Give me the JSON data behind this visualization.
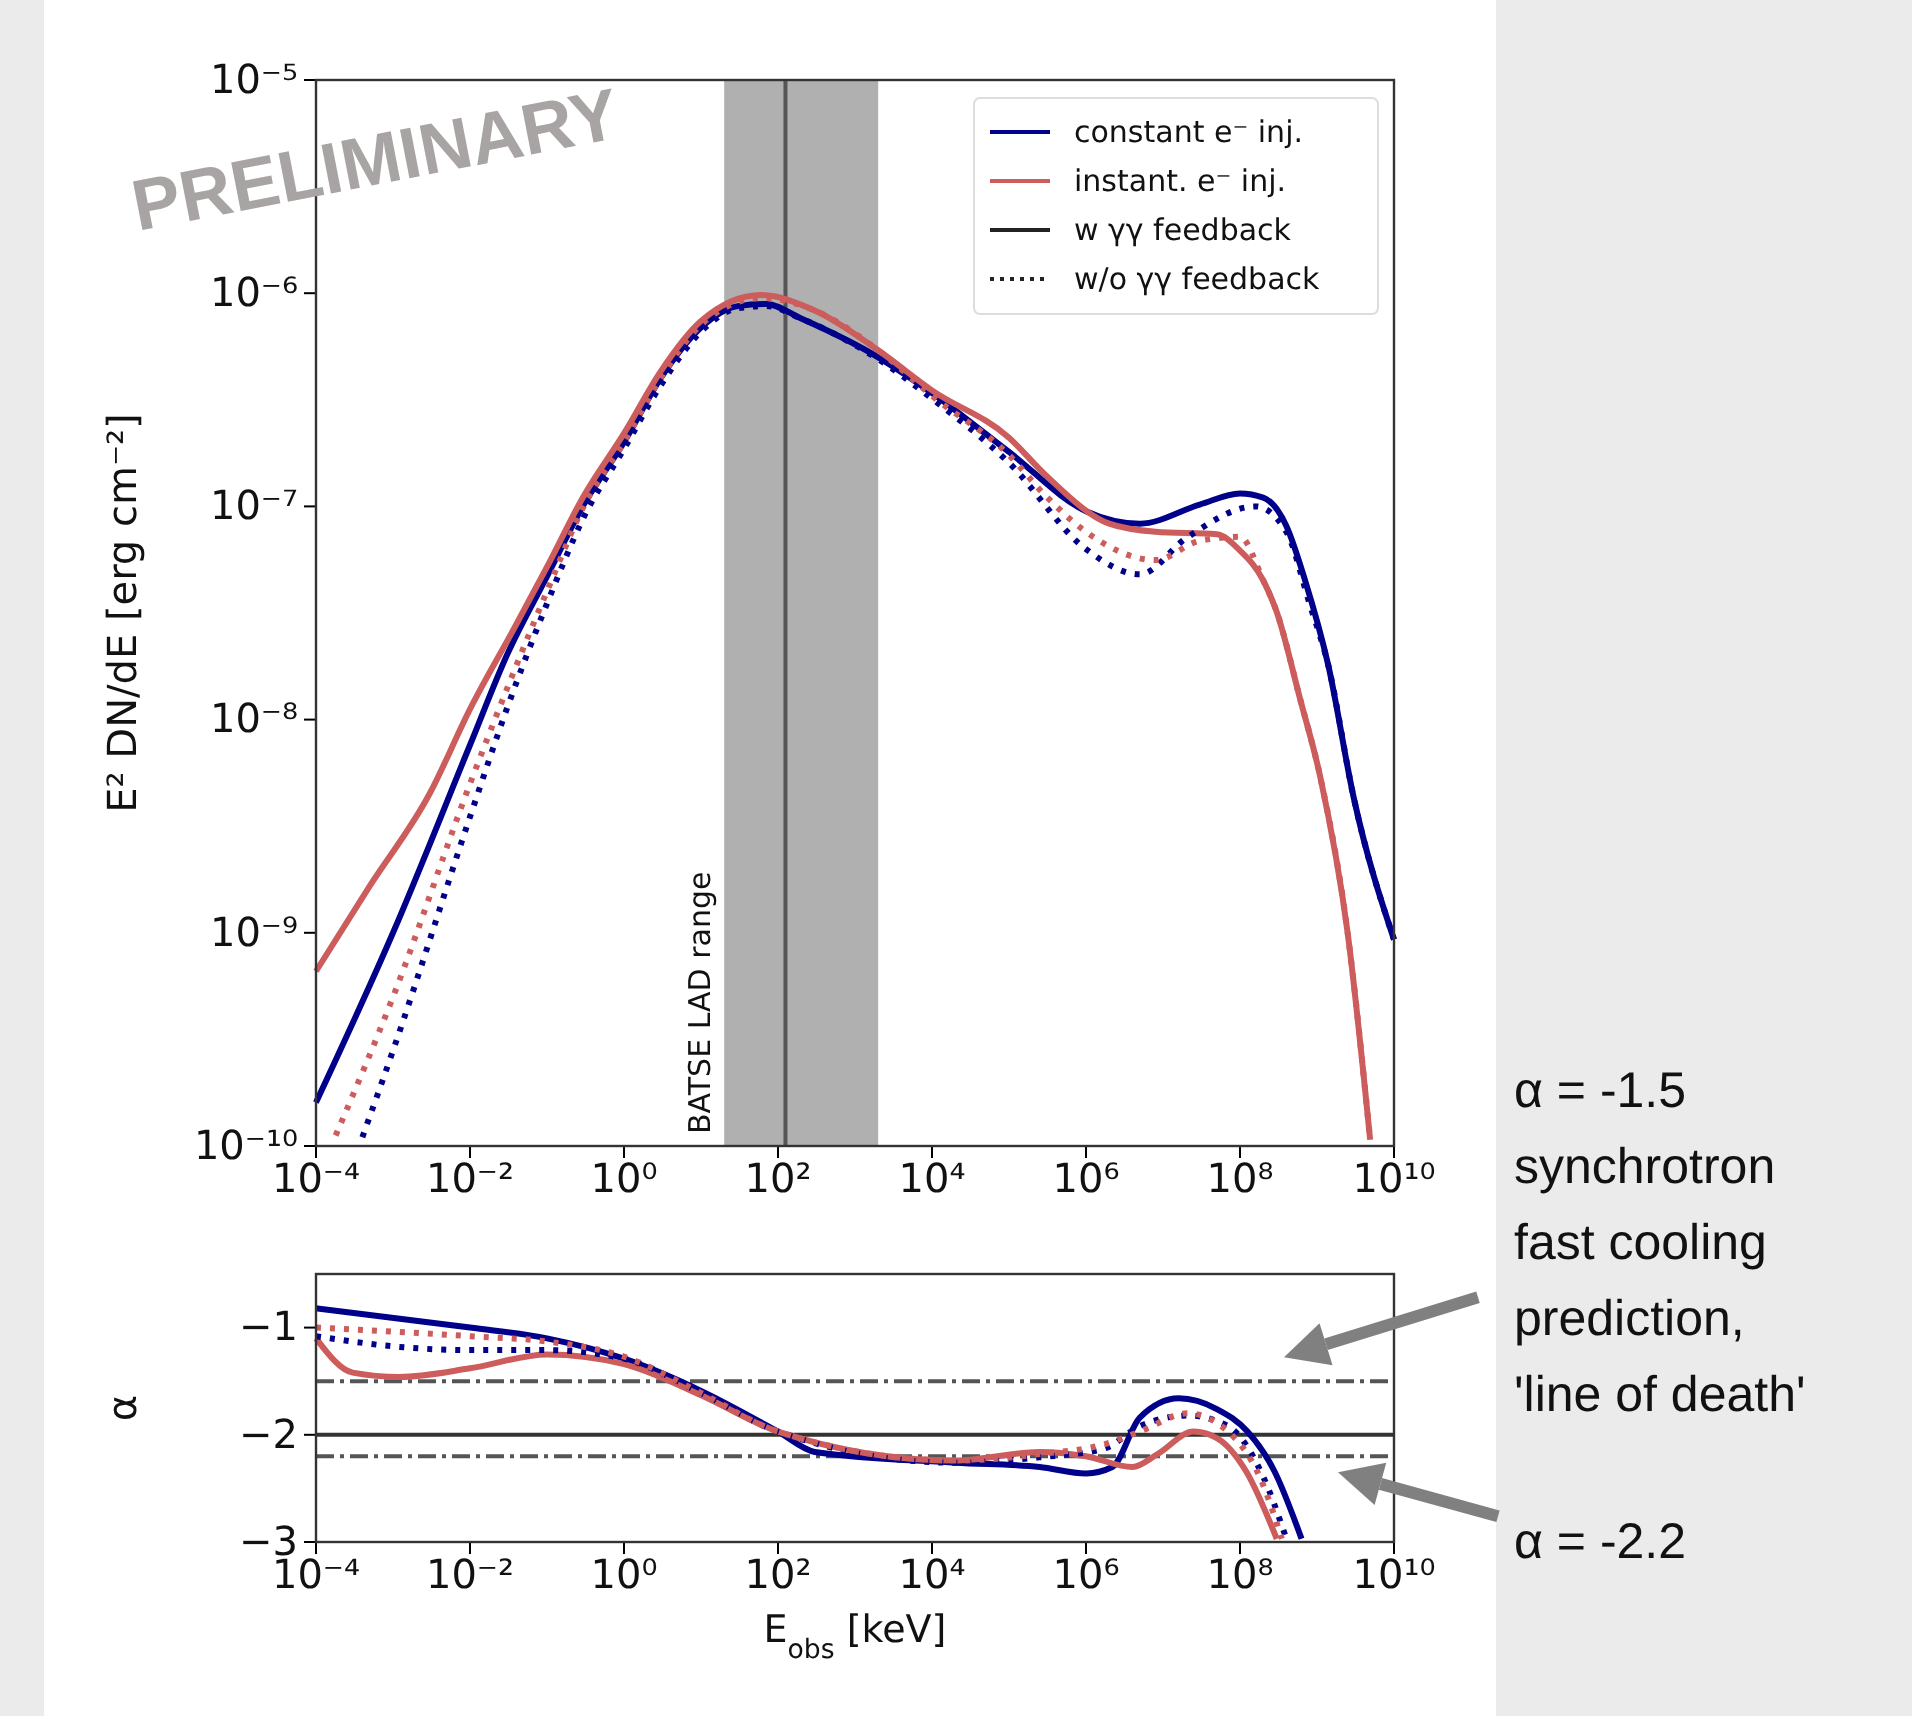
{
  "chart_data": [
    {
      "type": "line",
      "ylabel": "E² DN/dE [erg cm⁻²]",
      "log": "xy",
      "xlim": [
        0.0001,
        10000000000.0
      ],
      "ylim": [
        1e-10,
        1e-05
      ],
      "xticks": [
        {
          "value": 0.0001,
          "label": "10⁻⁴"
        },
        {
          "value": 0.01,
          "label": "10⁻²"
        },
        {
          "value": 1,
          "label": "10⁰"
        },
        {
          "value": 100,
          "label": "10²"
        },
        {
          "value": 10000.0,
          "label": "10⁴"
        },
        {
          "value": 1000000.0,
          "label": "10⁶"
        },
        {
          "value": 100000000.0,
          "label": "10⁸"
        },
        {
          "value": 10000000000.0,
          "label": "10¹⁰"
        }
      ],
      "yticks": [
        {
          "value": 1e-10,
          "label": "10⁻¹⁰"
        },
        {
          "value": 1e-09,
          "label": "10⁻⁹"
        },
        {
          "value": 1e-08,
          "label": "10⁻⁸"
        },
        {
          "value": 1e-07,
          "label": "10⁻⁷"
        },
        {
          "value": 1e-06,
          "label": "10⁻⁶"
        },
        {
          "value": 1e-05,
          "label": "10⁻⁵"
        }
      ],
      "legend": "top right",
      "bands": [
        {
          "axis": "x",
          "from": 20,
          "to": 2000,
          "label": "BATSE LAD range",
          "color": "#b0b0b0"
        }
      ],
      "ref_lines": [
        {
          "axis": "x",
          "value": 125,
          "color": "#555555"
        }
      ],
      "annotations": [
        "PRELIMINARY",
        "w γγ feedback",
        "w/o γγ feedback"
      ],
      "series": [
        {
          "name": "constant e⁻ inj.",
          "color": "#00008b",
          "line_style": "solid",
          "x": [
            0.0001,
            0.001,
            0.01,
            0.03,
            0.1,
            0.3,
            1,
            3,
            10,
            30,
            70,
            200,
            2000,
            10000.0,
            100000.0,
            1000000.0,
            5000000.0,
            30000000.0,
            100000000.0,
            200000000.0,
            400000000.0,
            700000000.0,
            1400000000.0,
            3000000000.0,
            10000000000.0
          ],
          "values": [
            1.6e-10,
            1e-09,
            7.6e-09,
            2e-08,
            4.7e-08,
            1.02e-07,
            2e-07,
            4e-07,
            6.9e-07,
            8.7e-07,
            8.9e-07,
            7.6e-07,
            5e-07,
            3.4e-07,
            1.8e-07,
            9.5e-08,
            8.3e-08,
            1.02e-07,
            1.15e-07,
            1.1e-07,
            8.1e-08,
            4.5e-08,
            1.8e-08,
            4.3e-09,
            9.3e-10
          ]
        },
        {
          "name": "instant. e⁻ inj.",
          "color": "#cd5c5c",
          "line_style": "solid",
          "x": [
            0.0001,
            0.0005,
            0.003,
            0.01,
            0.04,
            0.1,
            0.3,
            1,
            3,
            10,
            60,
            300,
            2000,
            10000.0,
            100000.0,
            300000.0,
            2000000.0,
            8000000.0,
            50000000.0,
            100000000.0,
            200000000.0,
            300000000.0,
            600000000.0,
            1100000000.0,
            2500000000.0,
            4900000000.0
          ],
          "values": [
            6.6e-10,
            1.66e-09,
            4.5e-09,
            1.12e-08,
            2.8e-08,
            5.2e-08,
            1.12e-07,
            2.2e-07,
            4.3e-07,
            7.4e-07,
            9.8e-07,
            8.3e-07,
            5.4e-07,
            3.5e-07,
            2.1e-07,
            1.4e-07,
            8.3e-08,
            7.6e-08,
            7.4e-08,
            6.2e-08,
            4.5e-08,
            3.2e-08,
            1.26e-08,
            5.4e-09,
            1e-09,
            1.07e-10
          ]
        },
        {
          "color": "#00008b",
          "line_style": "dotted",
          "x": [
            0.0004,
            0.001,
            0.01,
            0.03,
            0.1,
            0.3,
            1,
            3,
            10,
            30,
            70,
            200,
            2000,
            10000.0,
            100000.0,
            1000000.0,
            5000000.0,
            20000000.0,
            160000000.0,
            400000000.0,
            800000000.0,
            1400000000.0,
            3000000000.0,
            10000000000.0
          ],
          "values": [
            1.1e-10,
            2.8e-10,
            3.5e-09,
            1.12e-08,
            3.5e-08,
            8.9e-08,
            1.86e-07,
            3.7e-07,
            6.6e-07,
            8.5e-07,
            8.7e-07,
            7.6e-07,
            4.9e-07,
            3.2e-07,
            1.6e-07,
            6.3e-08,
            4.8e-08,
            7.1e-08,
            1e-07,
            7.6e-08,
            3.5e-08,
            1.8e-08,
            4.3e-09,
            9.3e-10
          ]
        },
        {
          "color": "#cd5c5c",
          "line_style": "dotted",
          "x": [
            0.00018,
            0.001,
            0.01,
            0.1,
            0.3,
            1,
            3,
            10,
            60,
            300,
            2000,
            10000.0,
            100000.0,
            300000.0,
            1000000.0,
            8000000.0,
            30000000.0,
            100000000.0,
            200000000.0,
            300000000.0,
            600000000.0,
            1100000000.0,
            2500000000.0,
            4900000000.0
          ],
          "values": [
            1.12e-10,
            5e-10,
            5e-09,
            4e-08,
            1e-07,
            2e-07,
            4e-07,
            7.1e-07,
            9.5e-07,
            8.3e-07,
            5.4e-07,
            3.3e-07,
            1.74e-07,
            1.12e-07,
            7.6e-08,
            5.6e-08,
            6.9e-08,
            7.2e-08,
            4.5e-08,
            3.2e-08,
            1.26e-08,
            5.4e-09,
            1e-09,
            1.07e-10
          ]
        }
      ]
    },
    {
      "type": "line",
      "xlabel": "E$_{obs}$ [keV]",
      "ylabel": "α",
      "log": "x",
      "xlim": [
        0.0001,
        10000000000.0
      ],
      "ylim": [
        -3,
        -0.5
      ],
      "xticks": [
        {
          "value": 0.0001,
          "label": "10⁻⁴"
        },
        {
          "value": 0.01,
          "label": "10⁻²"
        },
        {
          "value": 1,
          "label": "10⁰"
        },
        {
          "value": 100,
          "label": "10²"
        },
        {
          "value": 10000.0,
          "label": "10⁴"
        },
        {
          "value": 1000000.0,
          "label": "10⁶"
        },
        {
          "value": 100000000.0,
          "label": "10⁸"
        },
        {
          "value": 10000000000.0,
          "label": "10¹⁰"
        }
      ],
      "yticks": [
        {
          "value": -3,
          "label": "−3"
        },
        {
          "value": -2,
          "label": "−2"
        },
        {
          "value": -1,
          "label": "−1"
        }
      ],
      "ref_lines": [
        {
          "axis": "y",
          "value": -1.5,
          "line_style": "dashed",
          "color": "#555555",
          "label": "α = -1.5 synchrotron fast cooling prediction, 'line of death'"
        },
        {
          "axis": "y",
          "value": -2,
          "line_style": "solid",
          "color": "#333333"
        },
        {
          "axis": "y",
          "value": -2.2,
          "line_style": "dashed",
          "color": "#555555",
          "label": "α = -2.2"
        }
      ],
      "series": [
        {
          "color": "#00008b",
          "line_style": "solid",
          "x": [
            0.0001,
            0.01,
            0.1,
            1,
            10,
            100,
            300,
            20000.0,
            250000.0,
            1000000.0,
            2200000.0,
            5000000.0,
            16000000.0,
            50000000.0,
            125000000.0,
            280000000.0,
            630000000.0
          ],
          "values": [
            -0.82,
            -1.0,
            -1.1,
            -1.29,
            -1.59,
            -1.97,
            -2.16,
            -2.26,
            -2.3,
            -2.36,
            -2.3,
            -1.84,
            -1.66,
            -1.76,
            -1.97,
            -2.34,
            -2.97
          ]
        },
        {
          "color": "#cd5c5c",
          "line_style": "solid",
          "x": [
            0.0001,
            0.0003,
            0.0012,
            0.01,
            0.1,
            1,
            10,
            100,
            20000.0,
            250000.0,
            1000000.0,
            4000000.0,
            8500000.0,
            25000000.0,
            50000000.0,
            120000000.0,
            300000000.0
          ],
          "values": [
            -1.1,
            -1.42,
            -1.46,
            -1.38,
            -1.25,
            -1.34,
            -1.63,
            -1.97,
            -2.24,
            -2.16,
            -2.2,
            -2.3,
            -2.18,
            -1.97,
            -2.03,
            -2.34,
            -2.97
          ]
        },
        {
          "color": "#00008b",
          "line_style": "dotted",
          "x": [
            0.0001,
            0.0012,
            0.01,
            0.1,
            1,
            10,
            100,
            20000.0,
            250000.0,
            1700000.0,
            5000000.0,
            21000000.0,
            70000000.0,
            200000000.0,
            400000000.0
          ],
          "values": [
            -1.08,
            -1.18,
            -1.21,
            -1.21,
            -1.29,
            -1.61,
            -1.97,
            -2.26,
            -2.21,
            -2.13,
            -1.92,
            -1.82,
            -1.92,
            -2.39,
            -2.97
          ]
        },
        {
          "color": "#cd5c5c",
          "line_style": "dotted",
          "x": [
            0.0001,
            0.01,
            0.1,
            1,
            10,
            100,
            20000.0,
            250000.0,
            1700000.0,
            5000000.0,
            21000000.0,
            70000000.0,
            180000000.0,
            350000000.0
          ],
          "values": [
            -1.0,
            -1.08,
            -1.13,
            -1.27,
            -1.61,
            -1.97,
            -2.24,
            -2.18,
            -2.09,
            -1.97,
            -1.8,
            -1.97,
            -2.39,
            -2.97
          ]
        }
      ]
    }
  ]
}
